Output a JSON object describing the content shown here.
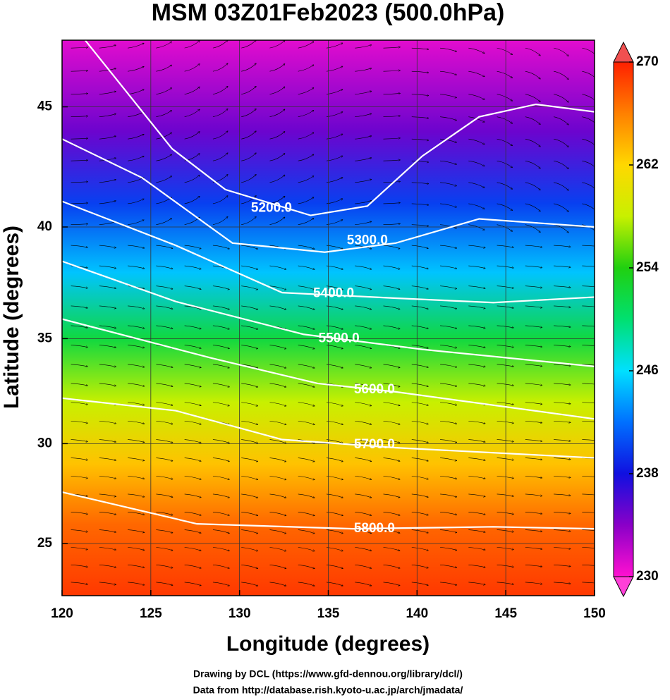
{
  "chart_data": {
    "type": "contour",
    "title": "MSM 03Z01Feb2023 (500.0hPa)",
    "xlabel": "Longitude (degrees)",
    "ylabel": "Latitude  (degrees)",
    "projection": "mercator",
    "xlim": [
      120,
      150
    ],
    "ylim": [
      22.3,
      47.6
    ],
    "xticks": [
      120,
      125,
      130,
      135,
      140,
      145,
      150
    ],
    "yticks": [
      25,
      30,
      35,
      40,
      45
    ],
    "grid": true,
    "contour_color": "#ffffff",
    "contours": [
      {
        "level": {
          "value": 5200,
          "label": "5200.0"
        },
        "lon": [
          121.3,
          126.2,
          129.2,
          134,
          137.2,
          140.3,
          143.5,
          146.7,
          150
        ],
        "lat": [
          47.6,
          43.3,
          41.6,
          40.5,
          40.9,
          43,
          44.6,
          45.1,
          44.8
        ],
        "label_at": [
          131.8,
          40.8
        ]
      },
      {
        "level": {
          "value": 5300,
          "label": "5300.0"
        },
        "lon": [
          120,
          124.5,
          129.6,
          134.8,
          138.8,
          143.5,
          150
        ],
        "lat": [
          43.7,
          42.1,
          39.3,
          38.9,
          39.3,
          40.35,
          40
        ],
        "label_at": [
          137.2,
          39.4
        ]
      },
      {
        "level": {
          "value": 5400,
          "label": "5400.0"
        },
        "lon": [
          120,
          126.4,
          132.4,
          138.8,
          144.3,
          150
        ],
        "lat": [
          41.1,
          39.2,
          37.1,
          36.85,
          36.65,
          36.9
        ],
        "label_at": [
          135.3,
          37.05
        ]
      },
      {
        "level": {
          "value": 5500,
          "label": "5500.0"
        },
        "lon": [
          120,
          126.4,
          133.6,
          140.3,
          150
        ],
        "lat": [
          38.5,
          36.7,
          35.2,
          34.5,
          33.7
        ],
        "label_at": [
          135.6,
          35.0
        ]
      },
      {
        "level": {
          "value": 5600,
          "label": "5600.0"
        },
        "lon": [
          120,
          128.4,
          134.4,
          138.8,
          150
        ],
        "lat": [
          35.9,
          34.1,
          32.9,
          32.5,
          31.2
        ],
        "label_at": [
          137.6,
          32.6
        ]
      },
      {
        "level": {
          "value": 5700,
          "label": "5700.0"
        },
        "lon": [
          120,
          126.4,
          132.4,
          138.8,
          150
        ],
        "lat": [
          32.2,
          31.6,
          30.2,
          29.8,
          29.3
        ],
        "label_at": [
          137.6,
          29.95
        ]
      },
      {
        "level": {
          "value": 5800,
          "label": "5800.0"
        },
        "lon": [
          120,
          127.6,
          136.4,
          144.3,
          150
        ],
        "lat": [
          27.6,
          26.0,
          25.75,
          25.85,
          25.75
        ],
        "label_at": [
          137.6,
          25.75
        ]
      }
    ],
    "field": {
      "lat": [
        47.6,
        44,
        41,
        38,
        35,
        32,
        29,
        26,
        22.3
      ],
      "temperature": [
        231,
        235,
        240,
        245,
        252,
        258,
        263,
        267,
        269
      ]
    },
    "colorbar": {
      "clim": [
        230,
        270
      ],
      "ticks": [
        230,
        238,
        246,
        254,
        262,
        270
      ],
      "colormap": [
        "#ff10d0",
        "#8a00c8",
        "#1010e0",
        "#0070ff",
        "#00e0ff",
        "#00e070",
        "#20d010",
        "#c8f000",
        "#ffd800",
        "#ff8000",
        "#ff2000"
      ],
      "extend_colors": [
        "#ff40d8",
        "#f05050"
      ]
    },
    "credits": [
      "Drawing by DCL (https://www.gfd-dennou.org/library/dcl/)",
      "Data from http://database.rish.kyoto-u.ac.jp/arch/jmadata/"
    ]
  }
}
